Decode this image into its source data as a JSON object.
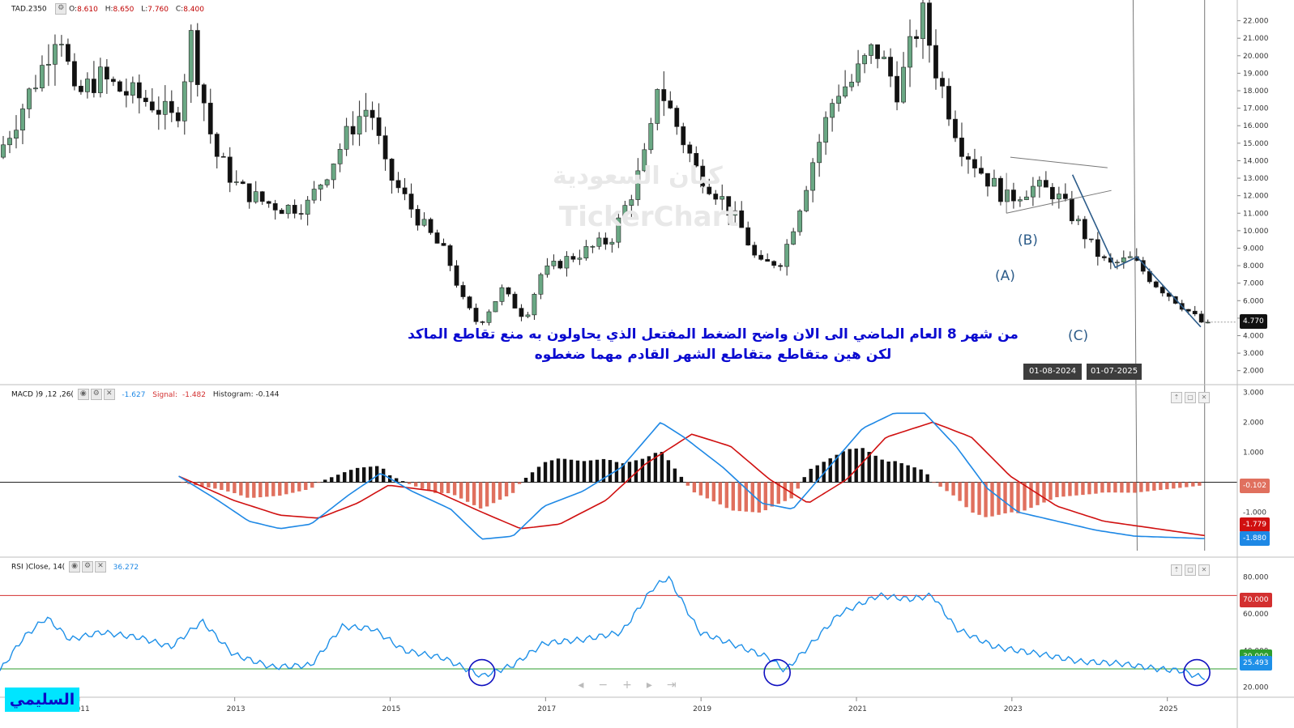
{
  "header": {
    "symbol": "TAD.2350",
    "o_label": "O:",
    "o_value": "8.610",
    "h_label": "H:",
    "h_value": "8.650",
    "l_label": "L:",
    "l_value": "7.760",
    "c_label": "C:",
    "c_value": "8.400"
  },
  "watermark": {
    "arabic": "كيان السعودية",
    "latin": "TickerChart"
  },
  "annotation": {
    "line1": "من شهر 8 العام الماضي الى الان واضح الضغط المفتعل الذي يحاولون به منع تقاطع الماكد",
    "line2": "لكن هين متقاطع متقاطع الشهر القادم مهما ضغطوه"
  },
  "waves": {
    "a": "(A)",
    "b": "(B)",
    "c": "(C)"
  },
  "markers": {
    "date1": "01-08-2024",
    "date2": "01-07-2025"
  },
  "price_badge": "4.770",
  "macd_header": {
    "name": "MACD )9 ,12 ,26(",
    "macd_value": "-1.627",
    "signal_label": "Signal:",
    "signal_value": "-1.482",
    "hist_label": "Histogram:",
    "hist_value": "-0.144"
  },
  "macd_badges": {
    "hist": "-0.102",
    "signal": "-1.779",
    "macd": "-1.880"
  },
  "rsi_header": {
    "name": "RSI )Close, 14(",
    "value": "36.272"
  },
  "rsi_badges": {
    "upper": "70.000",
    "lower": "30.000",
    "current": "25.493"
  },
  "signature": "السليمي",
  "colors": {
    "up": "#6aa884",
    "down": "#111111",
    "macd_line": "#1e88e5",
    "signal_line": "#d01010",
    "hist_pos": "#111111",
    "hist_neg": "#e0705e",
    "rsi_line": "#1e90e8",
    "rsi_upper": "#d32f2f",
    "rsi_lower": "#2e9e2e",
    "annotation": "#0a0ad0"
  },
  "chart_data": [
    {
      "type": "candlestick",
      "title": "TAD.2350",
      "x_axis": {
        "type": "year",
        "ticks": [
          "2011",
          "2013",
          "2015",
          "2017",
          "2019",
          "2021",
          "2023",
          "2025"
        ]
      },
      "y_axis": {
        "ticks": [
          "2.000",
          "3.000",
          "4.000",
          "5.000",
          "6.000",
          "7.000",
          "8.000",
          "9.000",
          "10.000",
          "11.000",
          "12.000",
          "13.000",
          "14.000",
          "15.000",
          "16.000",
          "17.000",
          "18.000",
          "19.000",
          "20.000",
          "21.000",
          "22.000"
        ],
        "range": [
          1.2,
          23.0
        ]
      },
      "close_points": [
        {
          "x": 2010.0,
          "close": 14.2
        },
        {
          "x": 2010.3,
          "close": 16.8
        },
        {
          "x": 2010.6,
          "close": 19.5
        },
        {
          "x": 2010.8,
          "close": 22.0
        },
        {
          "x": 2011.0,
          "close": 17.5
        },
        {
          "x": 2011.3,
          "close": 18.8
        },
        {
          "x": 2011.6,
          "close": 18.0
        },
        {
          "x": 2012.0,
          "close": 17.3
        },
        {
          "x": 2012.3,
          "close": 16.2
        },
        {
          "x": 2012.5,
          "close": 21.0
        },
        {
          "x": 2012.8,
          "close": 14.5
        },
        {
          "x": 2013.1,
          "close": 12.5
        },
        {
          "x": 2013.4,
          "close": 11.7
        },
        {
          "x": 2013.7,
          "close": 11.3
        },
        {
          "x": 2014.0,
          "close": 11.5
        },
        {
          "x": 2014.3,
          "close": 13.8
        },
        {
          "x": 2014.6,
          "close": 16.2
        },
        {
          "x": 2014.8,
          "close": 17.2
        },
        {
          "x": 2015.0,
          "close": 13.5
        },
        {
          "x": 2015.3,
          "close": 11.5
        },
        {
          "x": 2015.5,
          "close": 10.2
        },
        {
          "x": 2015.8,
          "close": 8.5
        },
        {
          "x": 2016.0,
          "close": 6.0
        },
        {
          "x": 2016.2,
          "close": 4.6
        },
        {
          "x": 2016.5,
          "close": 6.6
        },
        {
          "x": 2016.8,
          "close": 5.0
        },
        {
          "x": 2017.0,
          "close": 7.5
        },
        {
          "x": 2017.3,
          "close": 8.3
        },
        {
          "x": 2017.6,
          "close": 8.9
        },
        {
          "x": 2017.9,
          "close": 9.5
        },
        {
          "x": 2018.2,
          "close": 12.5
        },
        {
          "x": 2018.4,
          "close": 15.0
        },
        {
          "x": 2018.5,
          "close": 18.5
        },
        {
          "x": 2018.8,
          "close": 15.5
        },
        {
          "x": 2019.0,
          "close": 13.5
        },
        {
          "x": 2019.3,
          "close": 12.0
        },
        {
          "x": 2019.6,
          "close": 10.0
        },
        {
          "x": 2019.8,
          "close": 8.0
        },
        {
          "x": 2020.1,
          "close": 8.3
        },
        {
          "x": 2020.3,
          "close": 11.0
        },
        {
          "x": 2020.5,
          "close": 14.0
        },
        {
          "x": 2020.8,
          "close": 18.0
        },
        {
          "x": 2021.0,
          "close": 18.5
        },
        {
          "x": 2021.3,
          "close": 20.5
        },
        {
          "x": 2021.6,
          "close": 18.0
        },
        {
          "x": 2021.9,
          "close": 22.5
        },
        {
          "x": 2022.1,
          "close": 19.0
        },
        {
          "x": 2022.4,
          "close": 15.0
        },
        {
          "x": 2022.7,
          "close": 13.2
        },
        {
          "x": 2023.0,
          "close": 11.8
        },
        {
          "x": 2023.3,
          "close": 12.5
        },
        {
          "x": 2023.6,
          "close": 12.2
        },
        {
          "x": 2023.9,
          "close": 10.5
        },
        {
          "x": 2024.1,
          "close": 9.0
        },
        {
          "x": 2024.3,
          "close": 8.0
        },
        {
          "x": 2024.6,
          "close": 8.4
        },
        {
          "x": 2024.9,
          "close": 7.0
        },
        {
          "x": 2025.2,
          "close": 5.9
        },
        {
          "x": 2025.5,
          "close": 4.77
        }
      ],
      "last_value": 4.77,
      "annotations": [
        "(A)",
        "(B)",
        "(C)",
        "01-08-2024",
        "01-07-2025"
      ]
    },
    {
      "type": "line",
      "title": "MACD )9 ,12 ,26(",
      "y_axis": {
        "ticks": [
          "-1.000",
          "1.000",
          "2.000",
          "3.000"
        ],
        "range": [
          -2.5,
          3.2
        ]
      },
      "series": [
        {
          "name": "MACD",
          "last": -1.88,
          "values": [
            {
              "x": 2012.3,
              "y": 0.2
            },
            {
              "x": 2012.8,
              "y": -0.6
            },
            {
              "x": 2013.2,
              "y": -1.3
            },
            {
              "x": 2013.6,
              "y": -1.55
            },
            {
              "x": 2014.0,
              "y": -1.4
            },
            {
              "x": 2014.5,
              "y": -0.4
            },
            {
              "x": 2014.9,
              "y": 0.3
            },
            {
              "x": 2015.3,
              "y": -0.3
            },
            {
              "x": 2015.8,
              "y": -0.9
            },
            {
              "x": 2016.2,
              "y": -1.9
            },
            {
              "x": 2016.6,
              "y": -1.8
            },
            {
              "x": 2017.0,
              "y": -0.8
            },
            {
              "x": 2017.5,
              "y": -0.3
            },
            {
              "x": 2018.0,
              "y": 0.5
            },
            {
              "x": 2018.5,
              "y": 2.0
            },
            {
              "x": 2018.8,
              "y": 1.5
            },
            {
              "x": 2019.3,
              "y": 0.5
            },
            {
              "x": 2019.8,
              "y": -0.7
            },
            {
              "x": 2020.2,
              "y": -0.9
            },
            {
              "x": 2020.6,
              "y": 0.3
            },
            {
              "x": 2021.1,
              "y": 1.8
            },
            {
              "x": 2021.5,
              "y": 2.3
            },
            {
              "x": 2021.9,
              "y": 2.3
            },
            {
              "x": 2022.3,
              "y": 1.2
            },
            {
              "x": 2022.7,
              "y": -0.2
            },
            {
              "x": 2023.1,
              "y": -1.0
            },
            {
              "x": 2023.6,
              "y": -1.3
            },
            {
              "x": 2024.1,
              "y": -1.6
            },
            {
              "x": 2024.6,
              "y": -1.8
            },
            {
              "x": 2025.5,
              "y": -1.88
            }
          ]
        },
        {
          "name": "Signal",
          "last": -1.779,
          "values": [
            {
              "x": 2012.3,
              "y": 0.2
            },
            {
              "x": 2013.0,
              "y": -0.6
            },
            {
              "x": 2013.6,
              "y": -1.1
            },
            {
              "x": 2014.1,
              "y": -1.2
            },
            {
              "x": 2014.6,
              "y": -0.7
            },
            {
              "x": 2015.0,
              "y": -0.1
            },
            {
              "x": 2015.6,
              "y": -0.3
            },
            {
              "x": 2016.2,
              "y": -1.0
            },
            {
              "x": 2016.7,
              "y": -1.55
            },
            {
              "x": 2017.2,
              "y": -1.4
            },
            {
              "x": 2017.8,
              "y": -0.6
            },
            {
              "x": 2018.3,
              "y": 0.6
            },
            {
              "x": 2018.9,
              "y": 1.6
            },
            {
              "x": 2019.4,
              "y": 1.2
            },
            {
              "x": 2019.9,
              "y": 0.1
            },
            {
              "x": 2020.4,
              "y": -0.7
            },
            {
              "x": 2020.9,
              "y": 0.1
            },
            {
              "x": 2021.4,
              "y": 1.5
            },
            {
              "x": 2022.0,
              "y": 2.0
            },
            {
              "x": 2022.5,
              "y": 1.5
            },
            {
              "x": 2023.0,
              "y": 0.2
            },
            {
              "x": 2023.6,
              "y": -0.8
            },
            {
              "x": 2024.2,
              "y": -1.3
            },
            {
              "x": 2025.5,
              "y": -1.78
            }
          ]
        }
      ],
      "histogram": {
        "last": -0.102
      }
    },
    {
      "type": "line",
      "title": "RSI )Close, 14(",
      "y_axis": {
        "ticks": [
          "20.000",
          "40.000",
          "60.000",
          "80.000"
        ],
        "range": [
          15,
          90
        ]
      },
      "series": [
        {
          "name": "RSI",
          "last": 25.493,
          "values": [
            {
              "x": 2010.0,
              "y": 29
            },
            {
              "x": 2010.3,
              "y": 47
            },
            {
              "x": 2010.6,
              "y": 58
            },
            {
              "x": 2010.9,
              "y": 46
            },
            {
              "x": 2011.3,
              "y": 50
            },
            {
              "x": 2011.8,
              "y": 47
            },
            {
              "x": 2012.2,
              "y": 42
            },
            {
              "x": 2012.6,
              "y": 56
            },
            {
              "x": 2013.0,
              "y": 38
            },
            {
              "x": 2013.5,
              "y": 31
            },
            {
              "x": 2014.0,
              "y": 32
            },
            {
              "x": 2014.4,
              "y": 53
            },
            {
              "x": 2014.8,
              "y": 52
            },
            {
              "x": 2015.2,
              "y": 40
            },
            {
              "x": 2015.7,
              "y": 36
            },
            {
              "x": 2016.2,
              "y": 26
            },
            {
              "x": 2016.6,
              "y": 32
            },
            {
              "x": 2017.0,
              "y": 44
            },
            {
              "x": 2017.5,
              "y": 46
            },
            {
              "x": 2018.0,
              "y": 50
            },
            {
              "x": 2018.4,
              "y": 74
            },
            {
              "x": 2018.6,
              "y": 80
            },
            {
              "x": 2019.0,
              "y": 50
            },
            {
              "x": 2019.4,
              "y": 44
            },
            {
              "x": 2019.9,
              "y": 36
            },
            {
              "x": 2020.1,
              "y": 29
            },
            {
              "x": 2020.4,
              "y": 42
            },
            {
              "x": 2020.8,
              "y": 60
            },
            {
              "x": 2021.3,
              "y": 70
            },
            {
              "x": 2021.7,
              "y": 68
            },
            {
              "x": 2022.0,
              "y": 70
            },
            {
              "x": 2022.3,
              "y": 52
            },
            {
              "x": 2022.8,
              "y": 42
            },
            {
              "x": 2023.4,
              "y": 38
            },
            {
              "x": 2023.9,
              "y": 34
            },
            {
              "x": 2024.4,
              "y": 33
            },
            {
              "x": 2024.9,
              "y": 30
            },
            {
              "x": 2025.2,
              "y": 29
            },
            {
              "x": 2025.4,
              "y": 26
            },
            {
              "x": 2025.5,
              "y": 25.5
            }
          ]
        }
      ],
      "reference_lines": [
        70,
        30
      ],
      "highlights": [
        "2016.2",
        "2020.0",
        "2025.4"
      ]
    }
  ]
}
